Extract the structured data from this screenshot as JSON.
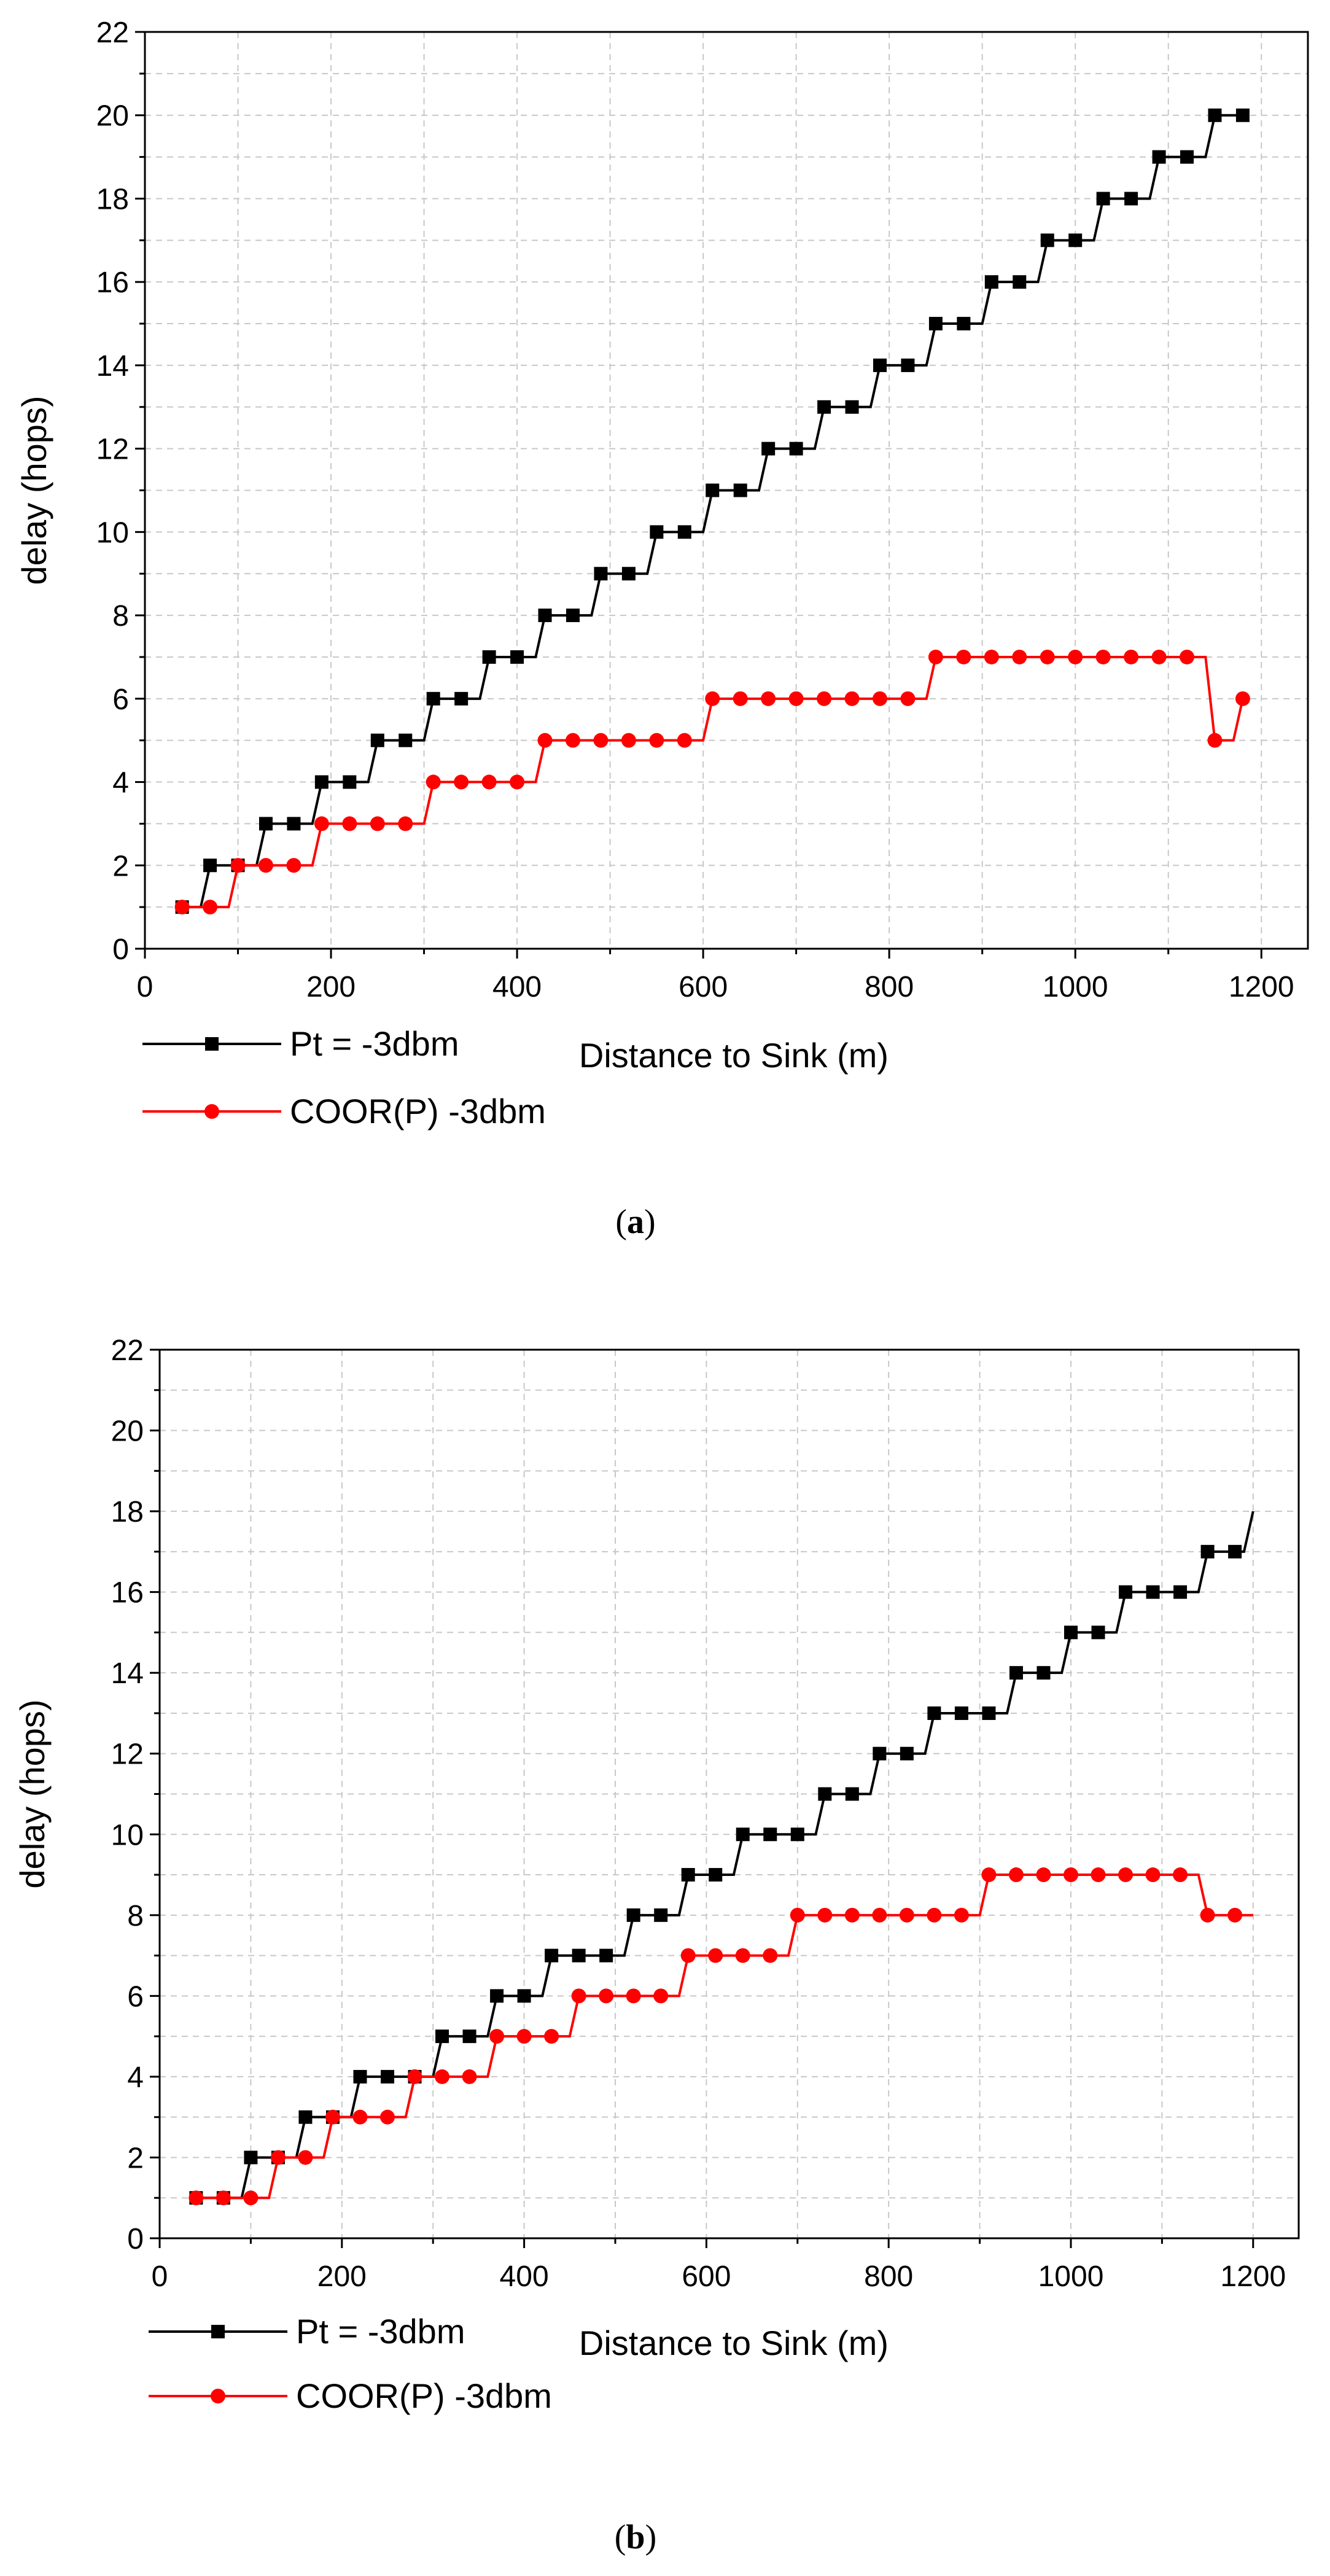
{
  "chart_data": [
    {
      "type": "line",
      "panel_label": "a",
      "xlabel": "Distance to Sink (m)",
      "ylabel": "delay (hops)",
      "xlim": [
        0,
        1250
      ],
      "ylim": [
        0,
        22
      ],
      "xticks": [
        0,
        200,
        400,
        600,
        800,
        1000,
        1200
      ],
      "yticks": [
        0,
        2,
        4,
        6,
        8,
        10,
        12,
        14,
        16,
        18,
        20,
        22
      ],
      "grid": true,
      "legend_position": "bottom-left, below axes",
      "series": [
        {
          "name": "Pt = -3dbm",
          "color": "#000000",
          "marker": "square",
          "x": [
            40,
            70,
            100,
            130,
            160,
            190,
            220,
            250,
            280,
            310,
            340,
            370,
            400,
            430,
            460,
            490,
            520,
            550,
            580,
            610,
            640,
            670,
            700,
            730,
            760,
            790,
            820,
            850,
            880,
            910,
            940,
            970,
            1000,
            1030,
            1060,
            1090,
            1120,
            1150,
            1180
          ],
          "y": [
            1,
            2,
            2,
            3,
            3,
            4,
            4,
            5,
            5,
            6,
            6,
            7,
            7,
            8,
            8,
            9,
            9,
            10,
            10,
            11,
            11,
            12,
            12,
            13,
            13,
            14,
            14,
            15,
            15,
            16,
            16,
            17,
            17,
            18,
            18,
            19,
            19,
            20,
            20
          ]
        },
        {
          "name": "COOR(P) -3dbm",
          "color": "#ff0000",
          "marker": "circle",
          "x": [
            40,
            70,
            100,
            130,
            160,
            190,
            220,
            250,
            280,
            310,
            340,
            370,
            400,
            430,
            460,
            490,
            520,
            550,
            580,
            610,
            640,
            670,
            700,
            730,
            760,
            790,
            820,
            850,
            880,
            910,
            940,
            970,
            1000,
            1030,
            1060,
            1090,
            1120,
            1150,
            1180
          ],
          "y": [
            1,
            1,
            2,
            2,
            2,
            3,
            3,
            3,
            3,
            4,
            4,
            4,
            4,
            5,
            5,
            5,
            5,
            5,
            5,
            6,
            6,
            6,
            6,
            6,
            6,
            6,
            6,
            7,
            7,
            7,
            7,
            7,
            7,
            7,
            7,
            7,
            7,
            5,
            6
          ]
        }
      ]
    },
    {
      "type": "line",
      "panel_label": "b",
      "xlabel": "Distance to Sink (m)",
      "ylabel": "delay (hops)",
      "xlim": [
        0,
        1250
      ],
      "ylim": [
        0,
        22
      ],
      "xticks": [
        0,
        200,
        400,
        600,
        800,
        1000,
        1200
      ],
      "yticks": [
        0,
        2,
        4,
        6,
        8,
        10,
        12,
        14,
        16,
        18,
        20,
        22
      ],
      "grid": true,
      "legend_position": "bottom-left, below axes",
      "series": [
        {
          "name": "Pt = -3dbm",
          "color": "#000000",
          "marker": "square",
          "x": [
            40,
            70,
            100,
            130,
            160,
            190,
            220,
            250,
            280,
            310,
            340,
            370,
            400,
            430,
            460,
            490,
            520,
            550,
            580,
            610,
            640,
            670,
            700,
            730,
            760,
            790,
            820,
            850,
            880,
            910,
            940,
            970,
            1000,
            1030,
            1060,
            1090,
            1120,
            1150,
            1180
          ],
          "y": [
            1,
            1,
            2,
            2,
            3,
            3,
            4,
            4,
            4,
            5,
            5,
            6,
            6,
            7,
            7,
            7,
            8,
            8,
            9,
            9,
            10,
            10,
            10,
            11,
            11,
            12,
            12,
            13,
            13,
            13,
            14,
            14,
            15,
            15,
            16,
            16,
            16,
            17,
            17
          ],
          "end_point": [
            1200,
            18
          ]
        },
        {
          "name": "COOR(P) -3dbm",
          "color": "#ff0000",
          "marker": "circle",
          "x": [
            40,
            70,
            100,
            130,
            160,
            190,
            220,
            250,
            280,
            310,
            340,
            370,
            400,
            430,
            460,
            490,
            520,
            550,
            580,
            610,
            640,
            670,
            700,
            730,
            760,
            790,
            820,
            850,
            880,
            910,
            940,
            970,
            1000,
            1030,
            1060,
            1090,
            1120,
            1150,
            1180
          ],
          "y": [
            1,
            1,
            1,
            2,
            2,
            3,
            3,
            3,
            4,
            4,
            4,
            5,
            5,
            5,
            6,
            6,
            6,
            6,
            7,
            7,
            7,
            7,
            8,
            8,
            8,
            8,
            8,
            8,
            8,
            9,
            9,
            9,
            9,
            9,
            9,
            9,
            9,
            8,
            8
          ],
          "end_point": [
            1200,
            8
          ]
        }
      ]
    }
  ]
}
